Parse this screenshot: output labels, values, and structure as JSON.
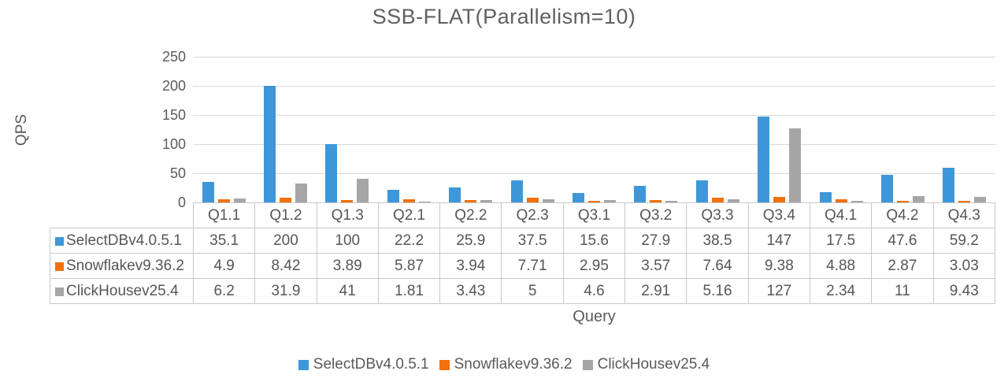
{
  "title": "SSB-FLAT(Parallelism=10)",
  "chart_data": {
    "type": "bar",
    "title": "SSB-FLAT(Parallelism=10)",
    "xlabel": "Query",
    "ylabel": "QPS",
    "ylim": [
      0,
      250
    ],
    "yticks": [
      0,
      50,
      100,
      150,
      200,
      250
    ],
    "grid": true,
    "legend_position": "bottom",
    "categories": [
      "Q1.1",
      "Q1.2",
      "Q1.3",
      "Q2.1",
      "Q2.2",
      "Q2.3",
      "Q3.1",
      "Q3.2",
      "Q3.3",
      "Q3.4",
      "Q4.1",
      "Q4.2",
      "Q4.3"
    ],
    "series": [
      {
        "name": "SelectDBv4.0.5.1",
        "color": "#3E97D8",
        "values": [
          35.1,
          200,
          100,
          22.2,
          25.9,
          37.5,
          15.6,
          27.9,
          38.5,
          147,
          17.5,
          47.6,
          59.2
        ]
      },
      {
        "name": "Snowflakev9.36.2",
        "color": "#F0710D",
        "values": [
          4.9,
          8.42,
          3.89,
          5.87,
          3.94,
          7.71,
          2.95,
          3.57,
          7.64,
          9.38,
          4.88,
          2.87,
          3.03
        ]
      },
      {
        "name": "ClickHousev25.4",
        "color": "#A6A6A6",
        "values": [
          6.2,
          31.9,
          41,
          1.81,
          3.43,
          5,
          4.6,
          2.91,
          5.16,
          127,
          2.34,
          11,
          9.43
        ]
      }
    ]
  },
  "colors": {
    "grid": "#d9d9d9",
    "table_border": "#c8c8c8",
    "text": "#5a5a5a"
  }
}
